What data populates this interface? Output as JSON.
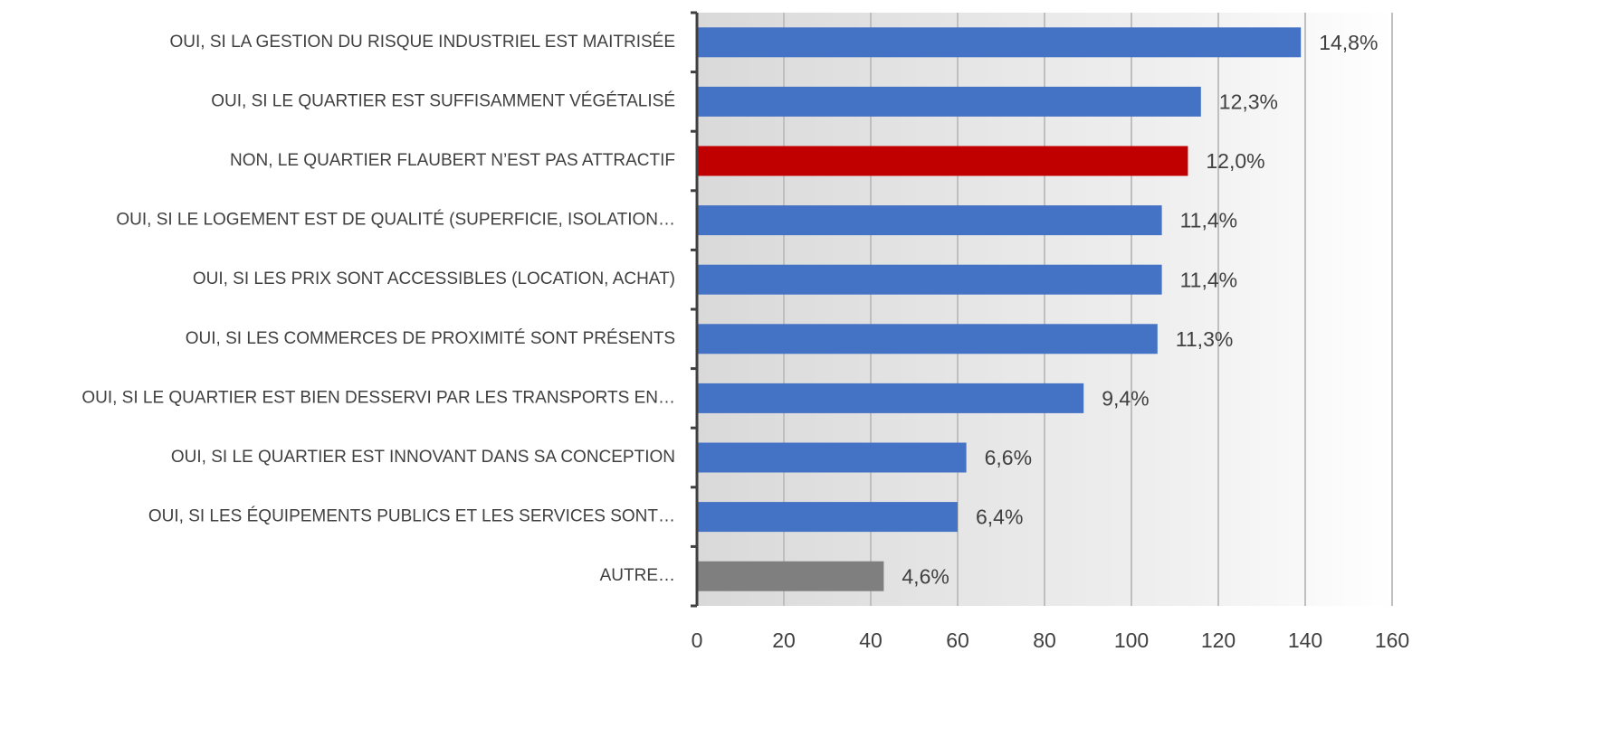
{
  "chart_data": {
    "type": "barh",
    "categories": [
      "OUI, SI LA GESTION DU RISQUE INDUSTRIEL EST MAITRISÉE",
      "OUI, SI LE QUARTIER EST SUFFISAMMENT VÉGÉTALISÉ",
      "NON, LE QUARTIER FLAUBERT N’EST PAS ATTRACTIF",
      "OUI, SI LE LOGEMENT EST DE QUALITÉ (SUPERFICIE, ISOLATION…",
      "OUI, SI LES PRIX SONT ACCESSIBLES (LOCATION, ACHAT)",
      "OUI, SI LES COMMERCES DE PROXIMITÉ SONT PRÉSENTS",
      "OUI, SI LE QUARTIER EST BIEN DESSERVI PAR LES TRANSPORTS EN…",
      "OUI, SI LE QUARTIER EST INNOVANT DANS SA CONCEPTION",
      "OUI, SI LES ÉQUIPEMENTS PUBLICS ET LES SERVICES SONT…",
      "AUTRE…"
    ],
    "values": [
      139,
      116,
      113,
      107,
      107,
      106,
      89,
      62,
      60,
      43
    ],
    "data_labels": [
      "14,8%",
      "12,3%",
      "12,0%",
      "11,4%",
      "11,4%",
      "11,3%",
      "9,4%",
      "6,6%",
      "6,4%",
      "4,6%"
    ],
    "colors": [
      "#4472c4",
      "#4472c4",
      "#c00000",
      "#4472c4",
      "#4472c4",
      "#4472c4",
      "#4472c4",
      "#4472c4",
      "#4472c4",
      "#7f7f7f"
    ],
    "xlim": [
      0,
      160
    ],
    "xticks": [
      0,
      20,
      40,
      60,
      80,
      100,
      120,
      140,
      160
    ],
    "grid": true
  }
}
